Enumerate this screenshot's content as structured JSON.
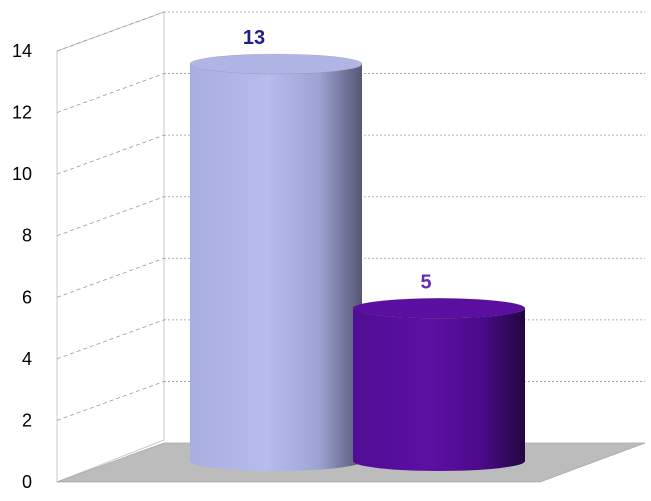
{
  "chart_data": {
    "type": "bar",
    "style": "3d-cylinder",
    "title": "",
    "xlabel": "",
    "ylabel": "",
    "ylim": [
      0,
      14
    ],
    "y_ticks": [
      0,
      2,
      4,
      6,
      8,
      10,
      12,
      14
    ],
    "y_tick_labels": [
      "0",
      "2",
      "4",
      "6",
      "8",
      "10",
      "12",
      "14"
    ],
    "grid": true,
    "legend": "none",
    "bars": [
      {
        "value": 13,
        "label": "13",
        "color": "#b0b5e6",
        "label_color": "#1b1f87"
      },
      {
        "value": 5,
        "label": "5",
        "color": "#5a0fa0",
        "label_color": "#6a2bb3"
      }
    ]
  }
}
